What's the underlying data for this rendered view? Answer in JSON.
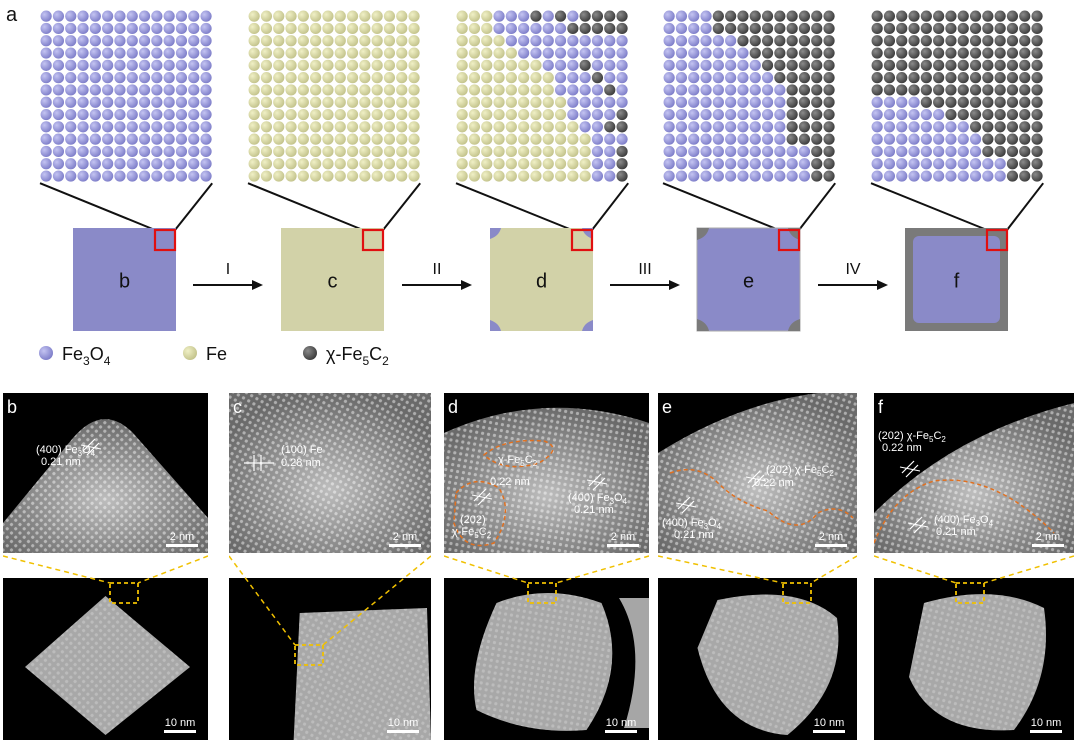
{
  "panel_a": {
    "letter": "a",
    "stage_letters": [
      "b",
      "c",
      "d",
      "e",
      "f"
    ],
    "arrows": [
      "I",
      "II",
      "III",
      "IV"
    ],
    "legend": [
      {
        "label_html": "Fe<tspan baseline-shift='sub' font-size='12'>3</tspan>O<tspan baseline-shift='sub' font-size='12'>4</tspan>",
        "label": "Fe3O4",
        "color": "#8e8ed6",
        "icon": "purple-atom-icon"
      },
      {
        "label": "Fe",
        "color": "#d6d69a",
        "icon": "yellow-atom-icon"
      },
      {
        "label": "χ-Fe5C2",
        "color": "#4a4a4a",
        "icon": "gray-atom-icon"
      }
    ],
    "colors": {
      "fe3o4": "#8e8ed6",
      "fe": "#d4d49a",
      "carbide": "#505050",
      "fe3o4_square": "#8a8ac8",
      "fe_square": "#d2d2a8",
      "carbide_square": "#7a7a7a",
      "highlight": "#e01010"
    }
  },
  "micrographs": [
    {
      "letter": "b",
      "annotations": [
        "(400) Fe3O4",
        "0.21 nm"
      ],
      "scale_top": "2 nm",
      "scale_bottom": "10 nm"
    },
    {
      "letter": "c",
      "annotations": [
        "(100) Fe",
        "0.28 nm"
      ],
      "scale_top": "2 nm",
      "scale_bottom": "10 nm"
    },
    {
      "letter": "d",
      "annotations": [
        "χ-Fe5C2",
        "0.22 nm",
        "(202)",
        "χ-Fe5C2",
        "(400) Fe3O4",
        "0.21 nm"
      ],
      "scale_top": "2 nm",
      "scale_bottom": "10 nm"
    },
    {
      "letter": "e",
      "annotations": [
        "(202) χ-Fe5C2",
        "0.22 nm",
        "(400) Fe3O4",
        "0.21 nm"
      ],
      "scale_top": "2 nm",
      "scale_bottom": "10 nm"
    },
    {
      "letter": "f",
      "annotations": [
        "(202) χ-Fe5C2",
        "0.22 nm",
        "(400) Fe3O4",
        "0.21 nm"
      ],
      "scale_top": "2 nm",
      "scale_bottom": "10 nm"
    }
  ]
}
